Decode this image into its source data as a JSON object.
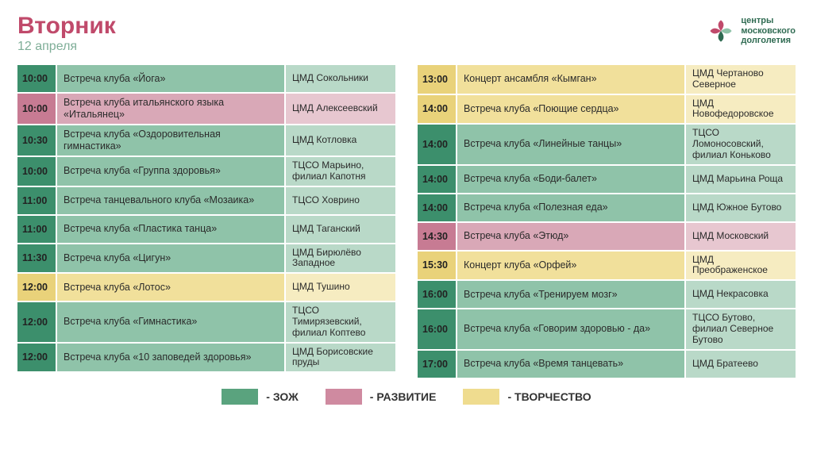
{
  "colors": {
    "accent_title": "#c04a6b",
    "date_sub": "#7fae98",
    "brand_text": "#2f6b52",
    "cat_green_time": "#3c8f6c",
    "cat_green_body": "#8fc3a9",
    "cat_green_loc": "#b9d9c8",
    "cat_pink_time": "#c77b93",
    "cat_pink_body": "#d9a8b7",
    "cat_pink_loc": "#e7c7d0",
    "cat_yellow_time": "#e9d27a",
    "cat_yellow_body": "#f1e09b",
    "cat_yellow_loc": "#f6ecc1",
    "legend_green": "#5aa37e",
    "legend_pink": "#cf8aa0",
    "legend_yellow": "#efdc8f"
  },
  "header": {
    "day": "Вторник",
    "date": "12 апреля",
    "brand_line1": "центры",
    "brand_line2": "московского",
    "brand_line3": "долголетия"
  },
  "legend": {
    "g": "- ЗОЖ",
    "p": "- РАЗВИТИЕ",
    "y": "- ТВОРЧЕСТВО"
  },
  "left": [
    {
      "time": "10:00",
      "desc": "Встреча клуба «Йога»",
      "loc": "ЦМД Сокольники",
      "cat": "g"
    },
    {
      "time": "10:00",
      "desc": "Встреча клуба итальянского языка «Итальянец»",
      "loc": "ЦМД Алексеевский",
      "cat": "p"
    },
    {
      "time": "10:30",
      "desc": "Встреча клуба «Оздоровительная гимнастика»",
      "loc": "ЦМД Котловка",
      "cat": "g"
    },
    {
      "time": "10:00",
      "desc": "Встреча клуба «Группа здоровья»",
      "loc": "ТЦСО Марьино, филиал Капотня",
      "cat": "g"
    },
    {
      "time": "11:00",
      "desc": "Встреча танцевального клуба «Мозаика»",
      "loc": "ТЦСО Ховрино",
      "cat": "g"
    },
    {
      "time": "11:00",
      "desc": "Встреча клуба «Пластика танца»",
      "loc": "ЦМД Таганский",
      "cat": "g"
    },
    {
      "time": "11:30",
      "desc": "Встреча клуба «Цигун»",
      "loc": "ЦМД Бирюлёво Западное",
      "cat": "g"
    },
    {
      "time": "12:00",
      "desc": "Встреча клуба «Лотос»",
      "loc": "ЦМД Тушино",
      "cat": "y"
    },
    {
      "time": "12:00",
      "desc": "Встреча клуба «Гимнастика»",
      "loc": "ТЦСО Тимирязевский, филиал Коптево",
      "cat": "g"
    },
    {
      "time": "12:00",
      "desc": "Встреча клуба «10 заповедей здоровья»",
      "loc": "ЦМД Борисовские пруды",
      "cat": "g"
    }
  ],
  "right": [
    {
      "time": "13:00",
      "desc": "Концерт ансамбля «Кымган»",
      "loc": "ЦМД Чертаново Северное",
      "cat": "y"
    },
    {
      "time": "14:00",
      "desc": "Встреча клуба «Поющие сердца»",
      "loc": "ЦМД Новофедоровское",
      "cat": "y"
    },
    {
      "time": "14:00",
      "desc": "Встреча клуба «Линейные танцы»",
      "loc": "ТЦСО Ломоносовский, филиал Коньково",
      "cat": "g"
    },
    {
      "time": "14:00",
      "desc": "Встреча клуба «Боди-балет»",
      "loc": "ЦМД Марьина Роща",
      "cat": "g"
    },
    {
      "time": "14:00",
      "desc": "Встреча клуба «Полезная еда»",
      "loc": "ЦМД Южное Бутово",
      "cat": "g"
    },
    {
      "time": "14:30",
      "desc": "Встреча клуба «Этюд»",
      "loc": "ЦМД Московский",
      "cat": "p"
    },
    {
      "time": "15:30",
      "desc": "Концерт клуба «Орфей»",
      "loc": "ЦМД Преображенское",
      "cat": "y"
    },
    {
      "time": "16:00",
      "desc": "Встреча клуба «Тренируем мозг»",
      "loc": "ЦМД Некрасовка",
      "cat": "g"
    },
    {
      "time": "16:00",
      "desc": "Встреча клуба «Говорим здоровью - да»",
      "loc": "ТЦСО Бутово, филиал Северное Бутово",
      "cat": "g"
    },
    {
      "time": "17:00",
      "desc": "Встреча клуба «Время танцевать»",
      "loc": "ЦМД Братеево",
      "cat": "g"
    }
  ]
}
